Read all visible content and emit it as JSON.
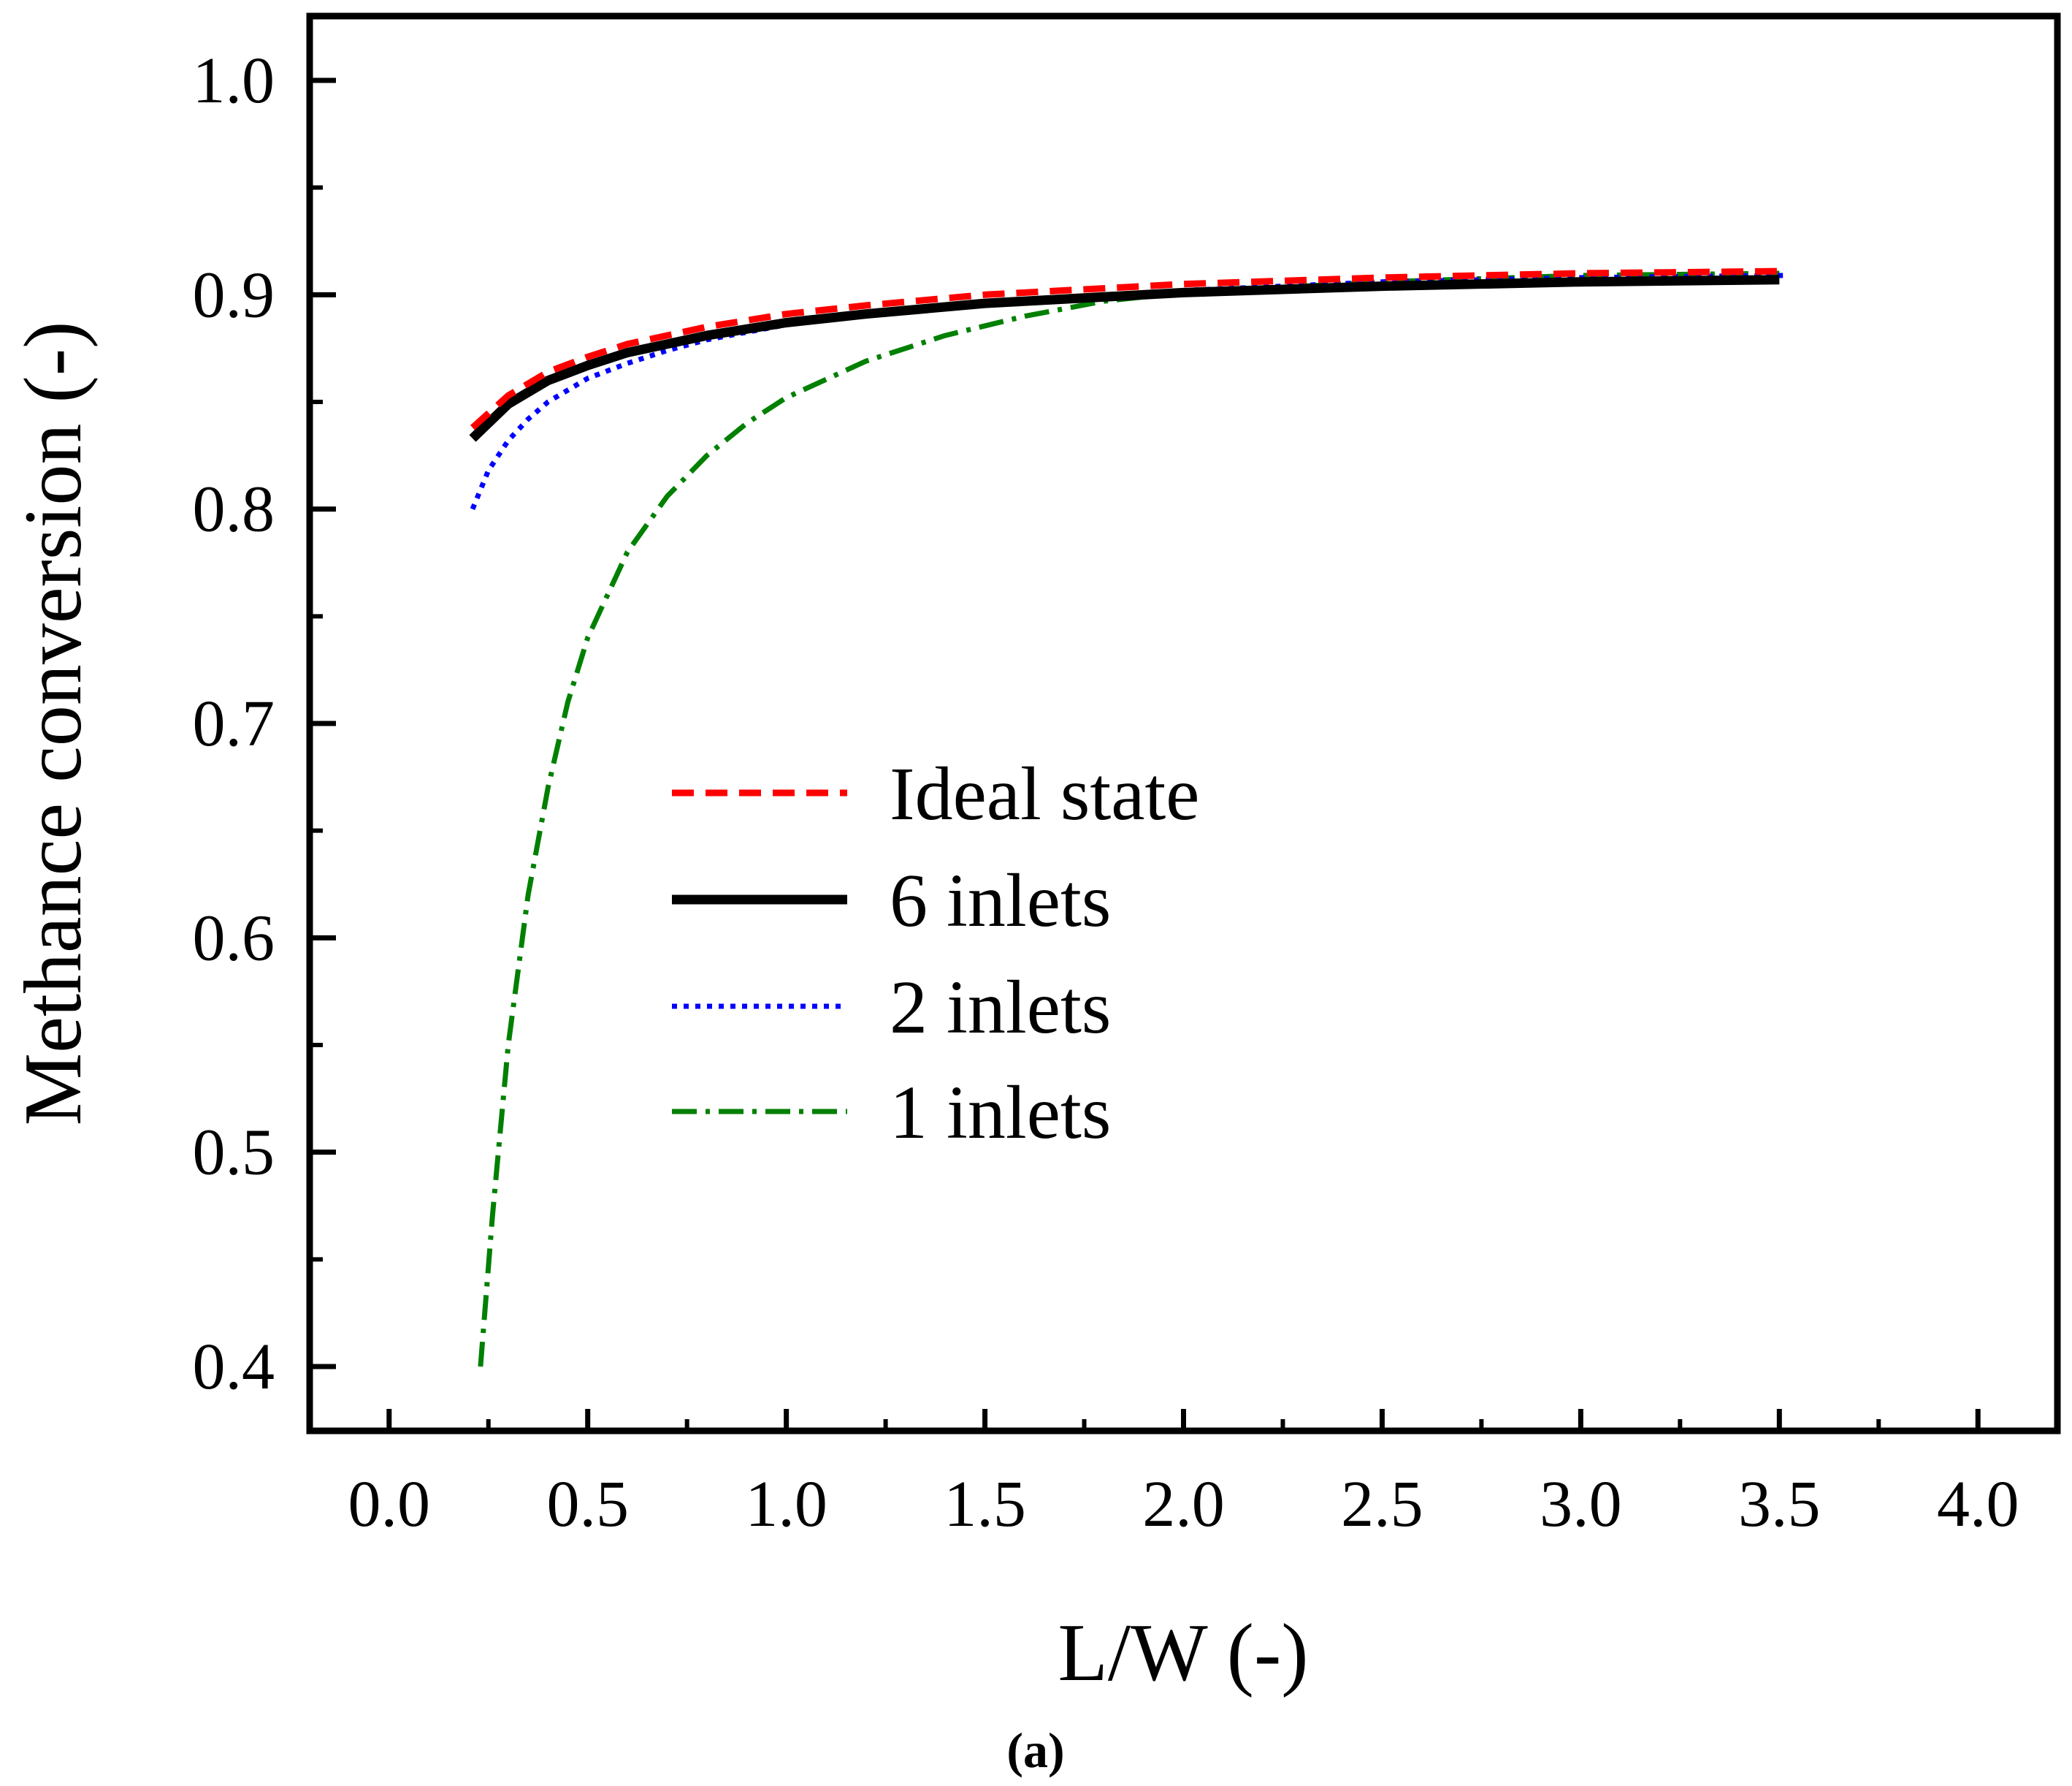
{
  "chart_data": {
    "type": "line",
    "title": "",
    "xlabel": "L/W (-)",
    "ylabel": "Methance conversion (-)",
    "caption": "(a)",
    "xlim": [
      -0.2,
      4.2
    ],
    "ylim": [
      0.37,
      1.03
    ],
    "xticks": [
      "0.0",
      "0.5",
      "1.0",
      "1.5",
      "2.0",
      "2.5",
      "3.0",
      "3.5",
      "4.0"
    ],
    "yticks": [
      "0.4",
      "0.5",
      "0.6",
      "0.7",
      "0.8",
      "0.9",
      "1.0"
    ],
    "legend_position": "center",
    "series": [
      {
        "name": "Ideal state",
        "color": "#ff0000",
        "style": "dashed",
        "x": [
          0.21,
          0.3,
          0.4,
          0.5,
          0.6,
          0.7,
          0.8,
          1.0,
          1.2,
          1.5,
          2.0,
          2.5,
          3.0,
          3.5
        ],
        "y": [
          0.838,
          0.853,
          0.864,
          0.871,
          0.877,
          0.881,
          0.885,
          0.891,
          0.895,
          0.9,
          0.905,
          0.908,
          0.91,
          0.911
        ]
      },
      {
        "name": "6 inlets",
        "color": "#000000",
        "style": "solid",
        "x": [
          0.21,
          0.3,
          0.4,
          0.5,
          0.6,
          0.7,
          0.8,
          1.0,
          1.2,
          1.5,
          2.0,
          2.5,
          3.0,
          3.5
        ],
        "y": [
          0.833,
          0.849,
          0.86,
          0.867,
          0.873,
          0.877,
          0.881,
          0.887,
          0.891,
          0.896,
          0.901,
          0.904,
          0.906,
          0.907
        ]
      },
      {
        "name": "2 inlets",
        "color": "#0000ff",
        "style": "dotted",
        "x": [
          0.21,
          0.25,
          0.3,
          0.35,
          0.4,
          0.5,
          0.6,
          0.7,
          0.8,
          1.0,
          1.2,
          1.5,
          2.0,
          2.5,
          3.0,
          3.52
        ],
        "y": [
          0.8,
          0.818,
          0.832,
          0.842,
          0.85,
          0.861,
          0.868,
          0.874,
          0.879,
          0.886,
          0.891,
          0.896,
          0.902,
          0.906,
          0.908,
          0.909
        ]
      },
      {
        "name": "1 inlets",
        "color": "#008000",
        "style": "dashdot",
        "x": [
          0.23,
          0.26,
          0.3,
          0.35,
          0.4,
          0.45,
          0.5,
          0.6,
          0.7,
          0.8,
          0.9,
          1.0,
          1.2,
          1.4,
          1.6,
          1.8,
          2.0,
          2.5,
          3.0,
          3.5
        ],
        "y": [
          0.4,
          0.47,
          0.55,
          0.62,
          0.67,
          0.71,
          0.74,
          0.78,
          0.806,
          0.825,
          0.84,
          0.852,
          0.869,
          0.881,
          0.89,
          0.897,
          0.901,
          0.906,
          0.909,
          0.91
        ]
      }
    ]
  }
}
